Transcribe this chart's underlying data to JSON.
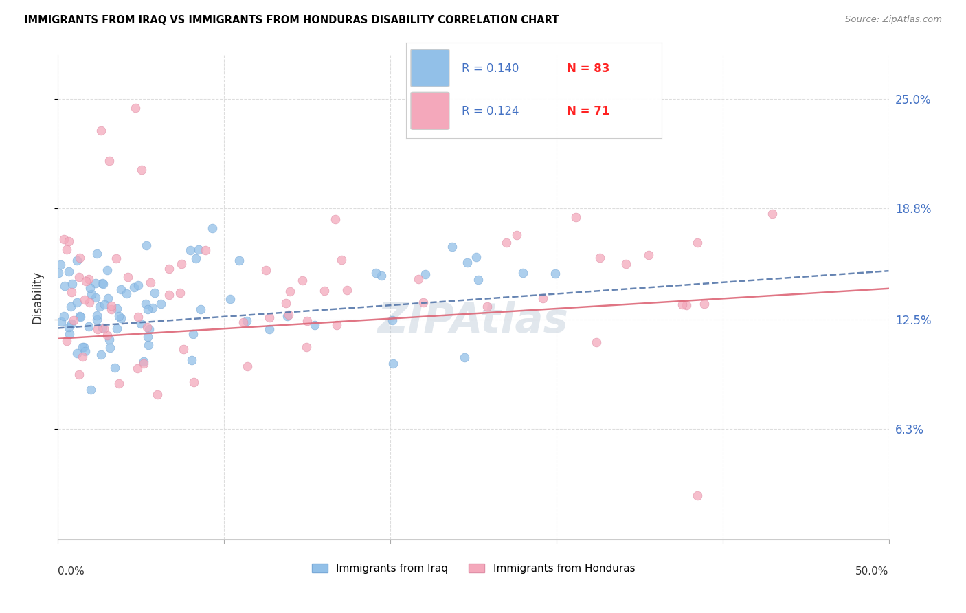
{
  "title": "IMMIGRANTS FROM IRAQ VS IMMIGRANTS FROM HONDURAS DISABILITY CORRELATION CHART",
  "source": "Source: ZipAtlas.com",
  "ylabel": "Disability",
  "ytick_values": [
    6.3,
    12.5,
    18.8,
    25.0
  ],
  "ytick_labels": [
    "6.3%",
    "12.5%",
    "18.8%",
    "25.0%"
  ],
  "xlim": [
    0.0,
    50.0
  ],
  "ylim": [
    0.0,
    27.5
  ],
  "iraq_R": "0.140",
  "iraq_N": 83,
  "honduras_R": "0.124",
  "honduras_N": 71,
  "iraq_color": "#92C0E8",
  "iraq_edge": "#7AAAD8",
  "honduras_color": "#F4A8BB",
  "honduras_edge": "#E090A8",
  "trend_iraq_color": "#5577AA",
  "trend_honduras_color": "#DD6677",
  "grid_color": "#DDDDDD",
  "label_color": "#4472C4",
  "text_color": "#333333",
  "watermark_color": "#AABBCC",
  "source_color": "#888888",
  "legend_R_color": "#4472C4",
  "legend_N_color": "#FF2222",
  "bottom_legend_iraq": "Immigrants from Iraq",
  "bottom_legend_honduras": "Immigrants from Honduras"
}
